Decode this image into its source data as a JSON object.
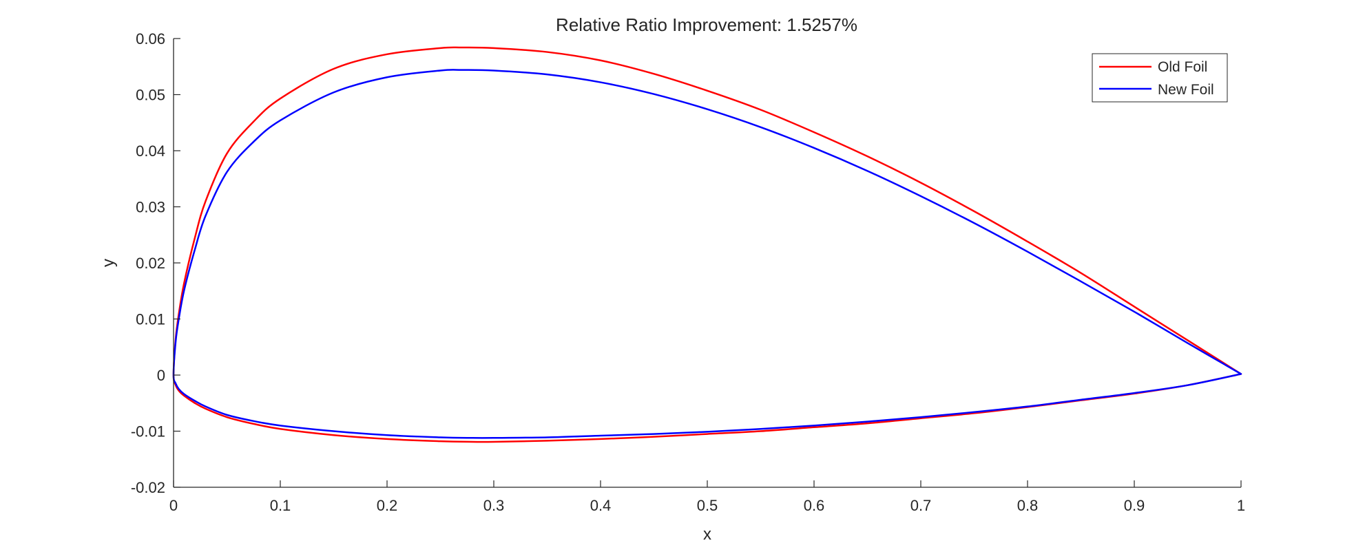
{
  "chart_data": {
    "type": "line",
    "title": "Relative Ratio Improvement: 1.5257%",
    "xlabel": "x",
    "ylabel": "y",
    "xlim": [
      0,
      1
    ],
    "ylim": [
      -0.02,
      0.06
    ],
    "xticks": [
      0,
      0.1,
      0.2,
      0.3,
      0.4,
      0.5,
      0.6,
      0.7,
      0.8,
      0.9,
      1
    ],
    "xtick_labels": [
      "0",
      "0.1",
      "0.2",
      "0.3",
      "0.4",
      "0.5",
      "0.6",
      "0.7",
      "0.8",
      "0.9",
      "1"
    ],
    "yticks": [
      -0.02,
      -0.01,
      0,
      0.01,
      0.02,
      0.03,
      0.04,
      0.05,
      0.06
    ],
    "ytick_labels": [
      "-0.02",
      "-0.01",
      "0",
      "0.01",
      "0.02",
      "0.03",
      "0.04",
      "0.05",
      "0.06"
    ],
    "grid": false,
    "legend_position": "top-right",
    "series": [
      {
        "name": "Old Foil",
        "color": "#ff0000",
        "x": [
          1.0,
          0.95,
          0.9,
          0.85,
          0.8,
          0.75,
          0.7,
          0.65,
          0.6,
          0.55,
          0.5,
          0.45,
          0.4,
          0.35,
          0.3,
          0.27,
          0.25,
          0.2,
          0.15,
          0.1,
          0.075,
          0.05,
          0.03,
          0.02,
          0.01,
          0.005,
          0.002,
          0.0,
          0.002,
          0.005,
          0.01,
          0.02,
          0.03,
          0.05,
          0.075,
          0.1,
          0.15,
          0.2,
          0.25,
          0.28,
          0.3,
          0.35,
          0.4,
          0.45,
          0.5,
          0.55,
          0.6,
          0.65,
          0.7,
          0.75,
          0.8,
          0.85,
          0.9,
          0.95,
          1.0
        ],
        "y": [
          0.0002,
          0.0062,
          0.0122,
          0.0182,
          0.0238,
          0.0292,
          0.0343,
          0.039,
          0.0433,
          0.0473,
          0.0507,
          0.0537,
          0.0561,
          0.0576,
          0.0583,
          0.0584,
          0.0583,
          0.0572,
          0.0546,
          0.0493,
          0.0452,
          0.0395,
          0.031,
          0.0245,
          0.0165,
          0.011,
          0.0065,
          0.0,
          -0.0018,
          -0.0028,
          -0.0037,
          -0.005,
          -0.006,
          -0.0075,
          -0.0087,
          -0.0096,
          -0.0107,
          -0.0114,
          -0.0118,
          -0.0119,
          -0.0119,
          -0.0117,
          -0.0114,
          -0.011,
          -0.0105,
          -0.01,
          -0.0093,
          -0.0086,
          -0.0077,
          -0.0068,
          -0.0057,
          -0.0045,
          -0.0033,
          -0.0018,
          0.0002
        ]
      },
      {
        "name": "New Foil",
        "color": "#0000ff",
        "x": [
          1.0,
          0.95,
          0.9,
          0.85,
          0.8,
          0.75,
          0.7,
          0.65,
          0.6,
          0.55,
          0.5,
          0.45,
          0.4,
          0.35,
          0.3,
          0.27,
          0.25,
          0.2,
          0.15,
          0.1,
          0.075,
          0.05,
          0.03,
          0.02,
          0.01,
          0.005,
          0.002,
          0.0,
          0.002,
          0.005,
          0.01,
          0.02,
          0.03,
          0.05,
          0.075,
          0.1,
          0.15,
          0.2,
          0.25,
          0.28,
          0.3,
          0.35,
          0.4,
          0.45,
          0.5,
          0.55,
          0.6,
          0.65,
          0.7,
          0.75,
          0.8,
          0.85,
          0.9,
          0.95,
          1.0
        ],
        "y": [
          0.0002,
          0.0057,
          0.0113,
          0.0167,
          0.022,
          0.0271,
          0.0319,
          0.0364,
          0.0405,
          0.0442,
          0.0474,
          0.0501,
          0.0522,
          0.0536,
          0.0543,
          0.0544,
          0.0543,
          0.0531,
          0.0504,
          0.0454,
          0.0416,
          0.0362,
          0.0284,
          0.0224,
          0.0152,
          0.0101,
          0.006,
          0.0,
          -0.0015,
          -0.0025,
          -0.0034,
          -0.0046,
          -0.0056,
          -0.0071,
          -0.0082,
          -0.009,
          -0.01,
          -0.0107,
          -0.0111,
          -0.0112,
          -0.0112,
          -0.0111,
          -0.0108,
          -0.0105,
          -0.0101,
          -0.0096,
          -0.009,
          -0.0083,
          -0.0075,
          -0.0066,
          -0.0056,
          -0.0044,
          -0.0032,
          -0.0018,
          0.0002
        ]
      }
    ]
  }
}
